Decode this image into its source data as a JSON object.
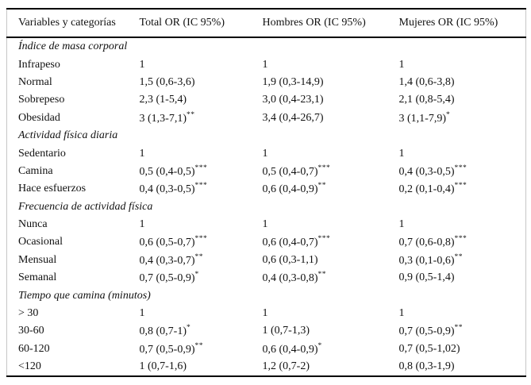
{
  "table": {
    "columns": [
      "Variables y categorías",
      "Total OR (IC 95%)",
      "Hombres OR (IC 95%)",
      "Mujeres OR (IC 95%)"
    ],
    "sections": [
      {
        "title": "Índice de masa corporal",
        "rows": [
          {
            "label": "Infrapeso",
            "cells": [
              {
                "v": "1",
                "s": ""
              },
              {
                "v": "1",
                "s": ""
              },
              {
                "v": "1",
                "s": ""
              }
            ]
          },
          {
            "label": "Normal",
            "cells": [
              {
                "v": "1,5 (0,6-3,6)",
                "s": ""
              },
              {
                "v": "1,9 (0,3-14,9)",
                "s": ""
              },
              {
                "v": "1,4 (0,6-3,8)",
                "s": ""
              }
            ]
          },
          {
            "label": "Sobrepeso",
            "cells": [
              {
                "v": "2,3 (1-5,4)",
                "s": ""
              },
              {
                "v": "3,0 (0,4-23,1)",
                "s": ""
              },
              {
                "v": "2,1 (0,8-5,4)",
                "s": ""
              }
            ]
          },
          {
            "label": "Obesidad",
            "cells": [
              {
                "v": "3 (1,3-7,1)",
                "s": "**"
              },
              {
                "v": "3,4 (0,4-26,7)",
                "s": ""
              },
              {
                "v": "3 (1,1-7,9)",
                "s": "*"
              }
            ]
          }
        ]
      },
      {
        "title": "Actividad física diaria",
        "rows": [
          {
            "label": "Sedentario",
            "cells": [
              {
                "v": "1",
                "s": ""
              },
              {
                "v": "1",
                "s": ""
              },
              {
                "v": "1",
                "s": ""
              }
            ]
          },
          {
            "label": "Camina",
            "cells": [
              {
                "v": "0,5 (0,4-0,5)",
                "s": "***"
              },
              {
                "v": "0,5 (0,4-0,7)",
                "s": "***"
              },
              {
                "v": "0,4 (0,3-0,5)",
                "s": "***"
              }
            ]
          },
          {
            "label": "Hace esfuerzos",
            "cells": [
              {
                "v": "0,4 (0,3-0,5)",
                "s": "***"
              },
              {
                "v": "0,6 (0,4-0,9)",
                "s": "**"
              },
              {
                "v": "0,2 (0,1-0,4)",
                "s": "***"
              }
            ]
          }
        ]
      },
      {
        "title": "Frecuencia de actividad física",
        "rows": [
          {
            "label": "Nunca",
            "cells": [
              {
                "v": "1",
                "s": ""
              },
              {
                "v": "1",
                "s": ""
              },
              {
                "v": "1",
                "s": ""
              }
            ]
          },
          {
            "label": "Ocasional",
            "cells": [
              {
                "v": "0,6 (0,5-0,7)",
                "s": "***"
              },
              {
                "v": "0,6 (0,4-0,7)",
                "s": "***"
              },
              {
                "v": "0,7 (0,6-0,8)",
                "s": "***"
              }
            ]
          },
          {
            "label": "Mensual",
            "cells": [
              {
                "v": "0,4 (0,3-0,7)",
                "s": "**"
              },
              {
                "v": "0,6 (0,3-1,1)",
                "s": ""
              },
              {
                "v": "0,3 (0,1-0,6)",
                "s": "**"
              }
            ]
          },
          {
            "label": "Semanal",
            "cells": [
              {
                "v": "0,7 (0,5-0,9)",
                "s": "*"
              },
              {
                "v": "0,4 (0,3-0,8)",
                "s": "**"
              },
              {
                "v": "0,9 (0,5-1,4)",
                "s": ""
              }
            ]
          }
        ]
      },
      {
        "title": "Tiempo que camina (minutos)",
        "rows": [
          {
            "label": "> 30",
            "cells": [
              {
                "v": "1",
                "s": ""
              },
              {
                "v": "1",
                "s": ""
              },
              {
                "v": "1",
                "s": ""
              }
            ]
          },
          {
            "label": "30-60",
            "cells": [
              {
                "v": "0,8 (0,7-1)",
                "s": "*"
              },
              {
                "v": "1 (0,7-1,3)",
                "s": ""
              },
              {
                "v": "0,7 (0,5-0,9)",
                "s": "**"
              }
            ]
          },
          {
            "label": "60-120",
            "cells": [
              {
                "v": "0,7 (0,5-0,9)",
                "s": "**"
              },
              {
                "v": "0,6 (0,4-0,9)",
                "s": "*"
              },
              {
                "v": "0,7 (0,5-1,02)",
                "s": ""
              }
            ]
          },
          {
            "label": "<120",
            "cells": [
              {
                "v": "1 (0,7-1,6)",
                "s": ""
              },
              {
                "v": "1,2 (0,7-2)",
                "s": ""
              },
              {
                "v": "0,8 (0,3-1,9)",
                "s": ""
              }
            ]
          }
        ]
      }
    ]
  },
  "colors": {
    "rule": "#000000",
    "side_border": "#c6c6c6",
    "text": "#111111",
    "background": "#ffffff"
  }
}
